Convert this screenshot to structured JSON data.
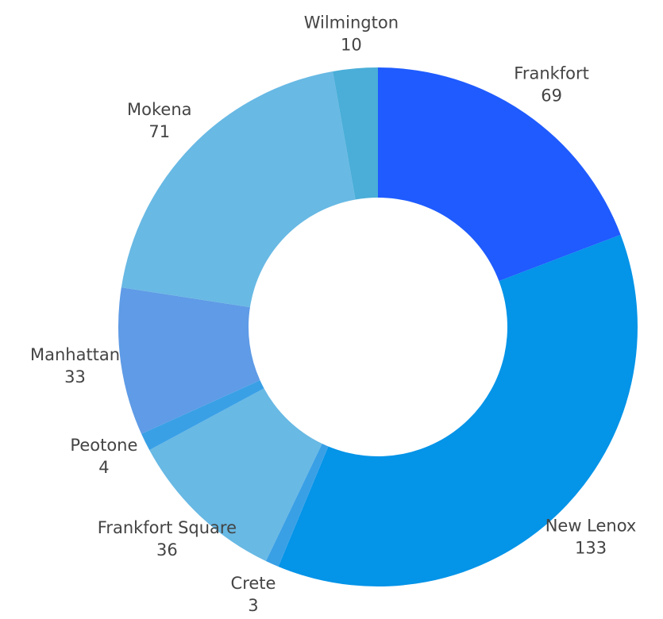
{
  "chart_data": {
    "type": "donut",
    "categories": [
      "Frankfort",
      "New Lenox",
      "Crete",
      "Frankfort Square",
      "Peotone",
      "Manhattan",
      "Mokena",
      "Wilmington"
    ],
    "values": [
      69,
      133,
      3,
      36,
      4,
      33,
      71,
      10
    ],
    "colors": [
      "#1f5bff",
      "#0494e8",
      "#3aa0e6",
      "#68b9e4",
      "#3aa0e6",
      "#5f9be6",
      "#68b9e4",
      "#4aaed8"
    ]
  }
}
